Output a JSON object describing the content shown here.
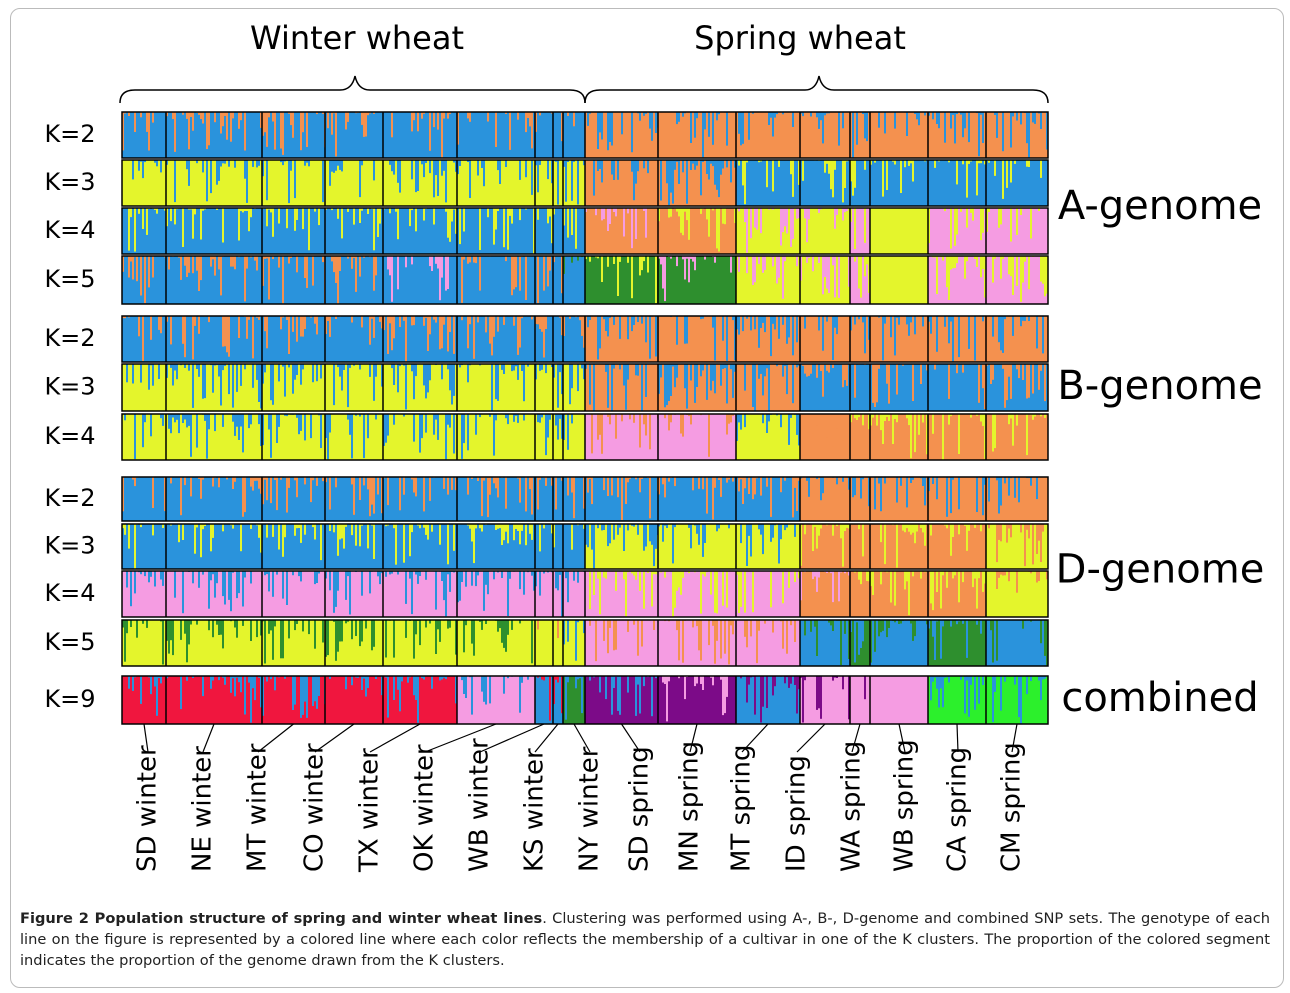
{
  "header": {
    "winter": "Winter wheat",
    "spring": "Spring wheat"
  },
  "panels": [
    {
      "name": "A-genome",
      "rows": [
        "K=2",
        "K=3",
        "K=4",
        "K=5"
      ]
    },
    {
      "name": "B-genome",
      "rows": [
        "K=2",
        "K=3",
        "K=4"
      ]
    },
    {
      "name": "D-genome",
      "rows": [
        "K=2",
        "K=3",
        "K=4",
        "K=5"
      ]
    },
    {
      "name": "combined",
      "rows": [
        "K=9"
      ]
    }
  ],
  "populations": [
    "SD winter",
    "NE winter",
    "MT winter",
    "CO winter",
    "TX winter",
    "OK winter",
    "WB winter",
    "KS winter",
    "NY winter",
    "SD spring",
    "MN spring",
    "MT spring",
    "ID spring",
    "WA spring",
    "WB spring",
    "CA spring",
    "CM spring"
  ],
  "caption": {
    "title": "Figure 2 Population structure of spring and winter wheat lines",
    "text": ". Clustering was performed using A-, B-, D-genome and combined SNP sets. The genotype of each line on the figure is represented by a colored line where each color reflects the membership of a cultivar in one of the K clusters. The proportion of the colored segment indicates the proportion of the genome drawn from the K clusters."
  }
}
